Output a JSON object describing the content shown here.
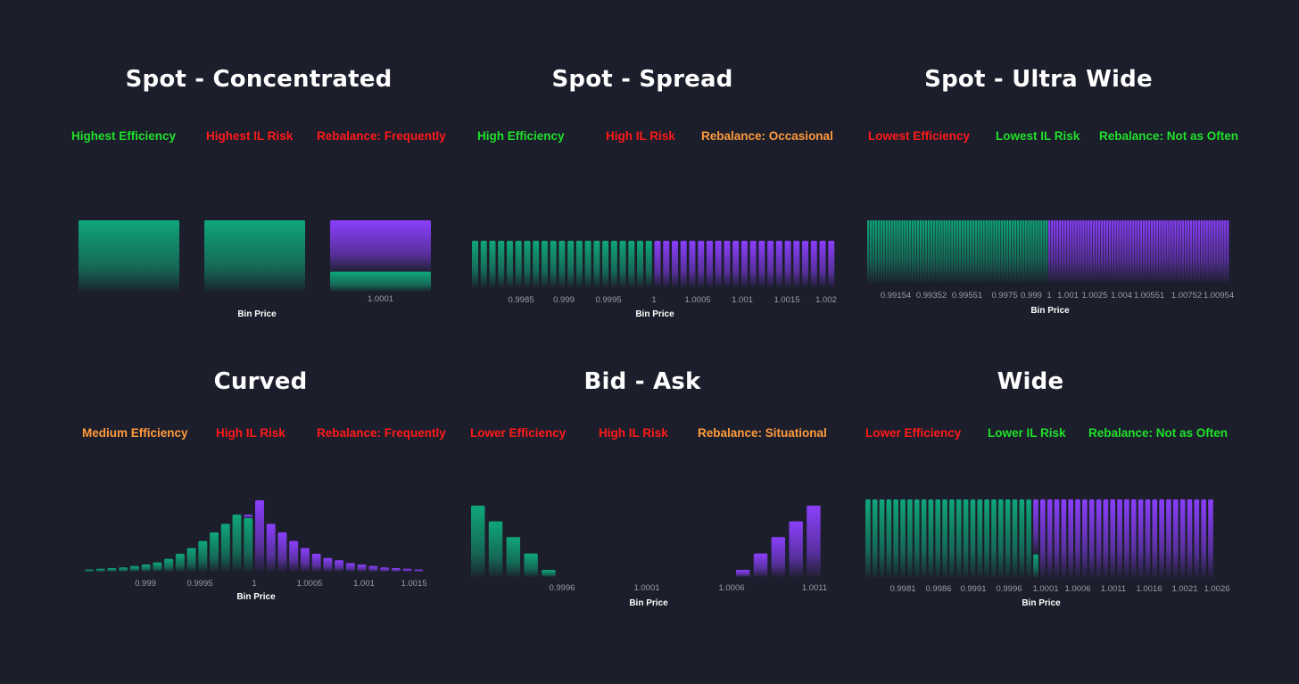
{
  "colors": {
    "background": "#1c1e2b",
    "green": "#1fe02a",
    "red": "#ff1a1a",
    "orange": "#ff9a3c",
    "bar_green": "#0fa67a",
    "bar_purple": "#8a3ffc",
    "tick": "#9a9cab"
  },
  "panels": [
    {
      "title": "Spot - Concentrated",
      "tags": [
        {
          "text": "Highest Efficiency",
          "color": "green"
        },
        {
          "text": "Highest IL Risk",
          "color": "red"
        },
        {
          "text": "Rebalance: Frequently",
          "color": "red"
        }
      ]
    },
    {
      "title": "Spot - Spread",
      "tags": [
        {
          "text": "High Efficiency",
          "color": "green"
        },
        {
          "text": "High IL Risk",
          "color": "red"
        },
        {
          "text": "Rebalance: Occasional",
          "color": "orange"
        }
      ]
    },
    {
      "title": "Spot - Ultra Wide",
      "tags": [
        {
          "text": "Lowest Efficiency",
          "color": "red"
        },
        {
          "text": "Lowest IL Risk",
          "color": "green"
        },
        {
          "text": "Rebalance: Not as Often",
          "color": "green"
        }
      ]
    },
    {
      "title": "Curved",
      "tags": [
        {
          "text": "Medium Efficiency",
          "color": "orange"
        },
        {
          "text": "High IL Risk",
          "color": "red"
        },
        {
          "text": "Rebalance: Frequently",
          "color": "red"
        }
      ]
    },
    {
      "title": "Bid - Ask",
      "tags": [
        {
          "text": "Lower Efficiency",
          "color": "red"
        },
        {
          "text": "High IL Risk",
          "color": "red"
        },
        {
          "text": "Rebalance: Situational",
          "color": "orange"
        }
      ]
    },
    {
      "title": "Wide",
      "tags": [
        {
          "text": "Lower Efficiency",
          "color": "red"
        },
        {
          "text": "Lower IL Risk",
          "color": "green"
        },
        {
          "text": "Rebalance: Not as Often",
          "color": "green"
        }
      ]
    }
  ],
  "chart_data": [
    {
      "type": "bar",
      "title": "Spot - Concentrated",
      "xlabel": "Bin Price",
      "ticks": [
        "1.0001"
      ],
      "bars": [
        {
          "green": 1.0,
          "purple": 0
        },
        {
          "green": 1.0,
          "purple": 0
        },
        {
          "green": 0.28,
          "purple": 0.72
        }
      ]
    },
    {
      "type": "bar",
      "title": "Spot - Spread",
      "xlabel": "Bin Price",
      "ticks": [
        "0.9985",
        "0.999",
        "0.9995",
        "1",
        "1.0005",
        "1.001",
        "1.0015",
        "1.002"
      ],
      "green_bins": 21,
      "purple_bins": 21,
      "value": 1.0
    },
    {
      "type": "bar",
      "title": "Spot - Ultra Wide",
      "xlabel": "Bin Price",
      "ticks": [
        "0.99154",
        "0.99352",
        "0.99551",
        "0.9975",
        "0.999",
        "1",
        "1.001",
        "1.0025",
        "1.004",
        "1.00551",
        "1.00752",
        "1.00954"
      ],
      "green_bins": 69,
      "purple_bins": 69,
      "value": 1.0
    },
    {
      "type": "bar",
      "title": "Curved",
      "xlabel": "Bin Price",
      "ticks": [
        "0.999",
        "0.9995",
        "1",
        "1.0005",
        "1.001",
        "1.0015"
      ],
      "bars": [
        {
          "green": 0.03,
          "purple": 0
        },
        {
          "green": 0.04,
          "purple": 0
        },
        {
          "green": 0.05,
          "purple": 0
        },
        {
          "green": 0.06,
          "purple": 0
        },
        {
          "green": 0.08,
          "purple": 0
        },
        {
          "green": 0.1,
          "purple": 0
        },
        {
          "green": 0.13,
          "purple": 0
        },
        {
          "green": 0.18,
          "purple": 0
        },
        {
          "green": 0.25,
          "purple": 0
        },
        {
          "green": 0.33,
          "purple": 0
        },
        {
          "green": 0.43,
          "purple": 0
        },
        {
          "green": 0.55,
          "purple": 0
        },
        {
          "green": 0.67,
          "purple": 0
        },
        {
          "green": 0.8,
          "purple": 0
        },
        {
          "green": 0.75,
          "purple": 0.05
        },
        {
          "green": 0,
          "purple": 1.0
        },
        {
          "green": 0,
          "purple": 0.67
        },
        {
          "green": 0,
          "purple": 0.55
        },
        {
          "green": 0,
          "purple": 0.43
        },
        {
          "green": 0,
          "purple": 0.33
        },
        {
          "green": 0,
          "purple": 0.25
        },
        {
          "green": 0,
          "purple": 0.19
        },
        {
          "green": 0,
          "purple": 0.16
        },
        {
          "green": 0,
          "purple": 0.12
        },
        {
          "green": 0,
          "purple": 0.1
        },
        {
          "green": 0,
          "purple": 0.08
        },
        {
          "green": 0,
          "purple": 0.06
        },
        {
          "green": 0,
          "purple": 0.05
        },
        {
          "green": 0,
          "purple": 0.04
        },
        {
          "green": 0,
          "purple": 0.03
        }
      ]
    },
    {
      "type": "bar",
      "title": "Bid - Ask",
      "xlabel": "Bin Price",
      "ticks": [
        "0.9996",
        "1.0001",
        "1.0006",
        "1.0011"
      ],
      "bars": [
        {
          "green": 1.0,
          "purple": 0
        },
        {
          "green": 0.78,
          "purple": 0
        },
        {
          "green": 0.56,
          "purple": 0
        },
        {
          "green": 0.33,
          "purple": 0
        },
        {
          "green": 0.1,
          "purple": 0
        },
        {
          "green": 0,
          "purple": 0
        },
        {
          "green": 0,
          "purple": 0
        },
        {
          "green": 0,
          "purple": 0
        },
        {
          "green": 0,
          "purple": 0
        },
        {
          "green": 0,
          "purple": 0
        },
        {
          "green": 0,
          "purple": 0
        },
        {
          "green": 0,
          "purple": 0
        },
        {
          "green": 0,
          "purple": 0
        },
        {
          "green": 0,
          "purple": 0
        },
        {
          "green": 0,
          "purple": 0
        },
        {
          "green": 0,
          "purple": 0.1
        },
        {
          "green": 0,
          "purple": 0.33
        },
        {
          "green": 0,
          "purple": 0.56
        },
        {
          "green": 0,
          "purple": 0.78
        },
        {
          "green": 0,
          "purple": 1.0
        }
      ]
    },
    {
      "type": "bar",
      "title": "Wide",
      "xlabel": "Bin Price",
      "ticks": [
        "0.9981",
        "0.9986",
        "0.9991",
        "0.9996",
        "1.0001",
        "1.0006",
        "1.0011",
        "1.0016",
        "1.0021",
        "1.0026"
      ],
      "bars_green": 24,
      "bars_purple": 25,
      "split_bin": {
        "green": 0.3,
        "purple": 0.7
      },
      "value": 1.0
    }
  ]
}
